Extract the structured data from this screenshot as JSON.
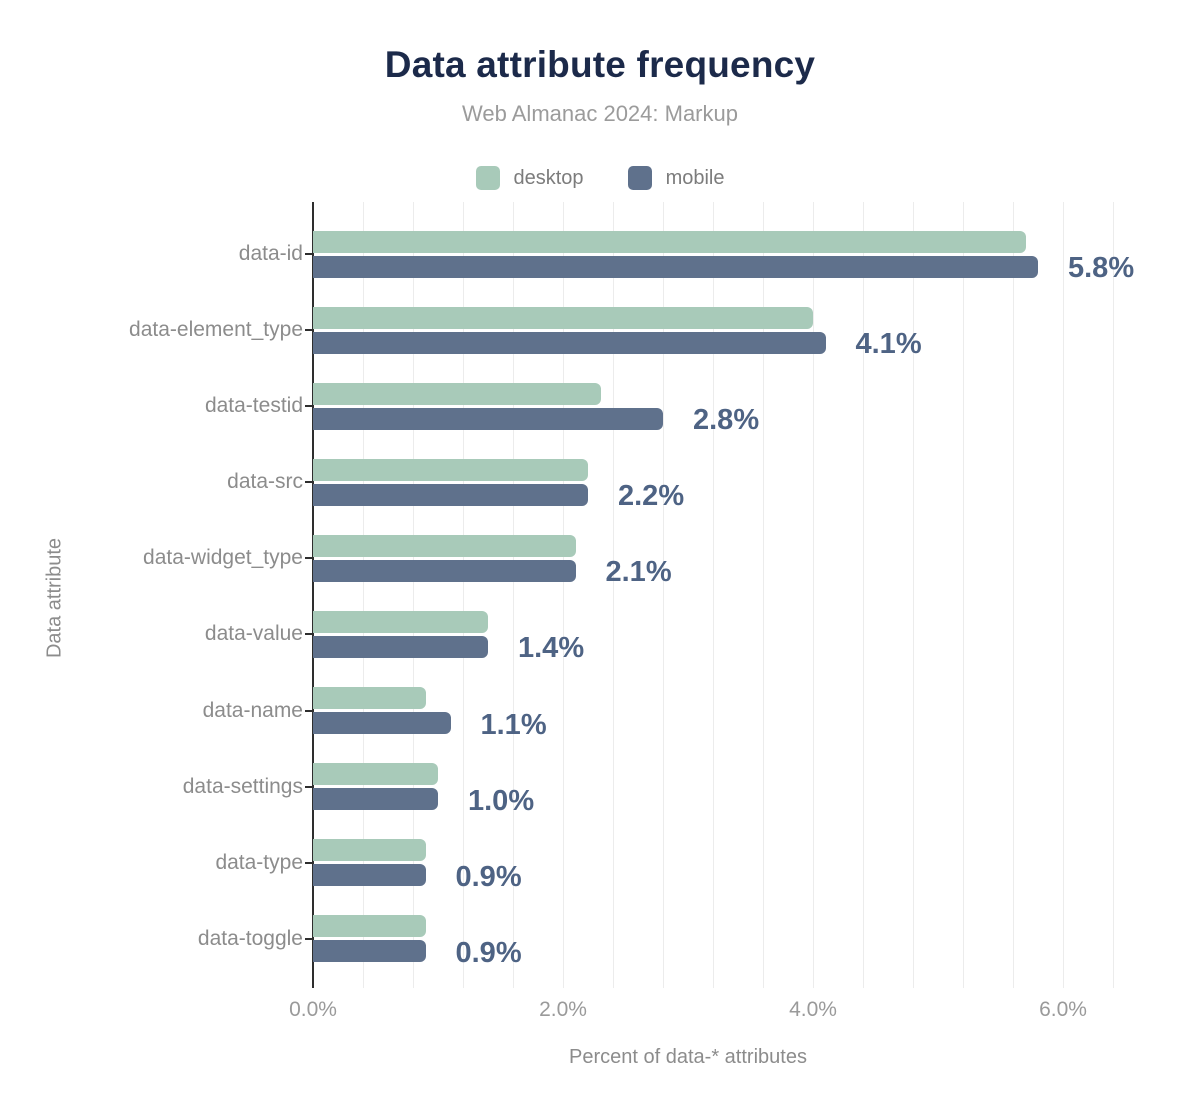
{
  "header": {
    "title": "Data attribute frequency",
    "subtitle": "Web Almanac 2024: Markup"
  },
  "legend": [
    {
      "label": "desktop",
      "color": "#a8cab9"
    },
    {
      "label": "mobile",
      "color": "#5f718c"
    }
  ],
  "axes": {
    "x_title": "Percent of data-* attributes",
    "y_title": "Data attribute",
    "x_tick_labels": [
      "0.0%",
      "2.0%",
      "4.0%",
      "6.0%"
    ],
    "x_tick_values": [
      0,
      2,
      4,
      6
    ]
  },
  "chart_data": {
    "type": "bar",
    "orientation": "horizontal",
    "title": "Data attribute frequency",
    "subtitle": "Web Almanac 2024: Markup",
    "categories": [
      "data-id",
      "data-element_type",
      "data-testid",
      "data-src",
      "data-widget_type",
      "data-value",
      "data-name",
      "data-settings",
      "data-type",
      "data-toggle"
    ],
    "series": [
      {
        "name": "desktop",
        "color": "#a8cab9",
        "values": [
          5.7,
          4.0,
          2.3,
          2.2,
          2.1,
          1.4,
          0.9,
          1.0,
          0.9,
          0.9
        ]
      },
      {
        "name": "mobile",
        "color": "#5f718c",
        "values": [
          5.8,
          4.1,
          2.8,
          2.2,
          2.1,
          1.4,
          1.1,
          1.0,
          0.9,
          0.9
        ]
      }
    ],
    "value_labels": [
      "5.8%",
      "4.1%",
      "2.8%",
      "2.2%",
      "2.1%",
      "1.4%",
      "1.1%",
      "1.0%",
      "0.9%",
      "0.9%"
    ],
    "xlabel": "Percent of data-* attributes",
    "ylabel": "Data attribute",
    "xlim": [
      0,
      6.4
    ],
    "grid_step": 0.4,
    "grid": true,
    "legend_position": "top"
  },
  "colors": {
    "title": "#1c2a4a",
    "subtitle": "#9b9b9b",
    "value_label": "#4e6384",
    "category_label": "#8c8c8c",
    "tick_label": "#9a9a9a",
    "gridline": "#ececec",
    "axis_line": "#2e2e2e",
    "background": "#ffffff"
  }
}
